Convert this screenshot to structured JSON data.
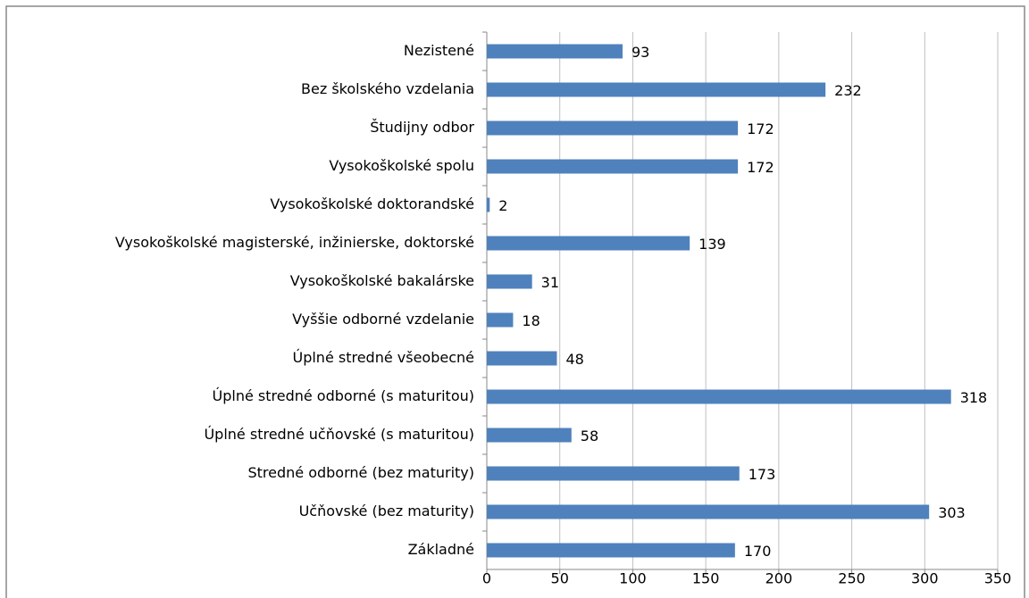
{
  "chart_data": {
    "type": "bar",
    "orientation": "horizontal",
    "categories": [
      "Nezistené",
      "Bez školského vzdelania",
      "Študijny odbor",
      "Vysokoškolské spolu",
      "Vysokoškolské doktorandské",
      "Vysokoškolské magisterské, inžinierske, doktorské",
      "Vysokoškolské bakalárske",
      "Vyššie odborné vzdelanie",
      "Úplné stredné všeobecné",
      "Úplné stredné odborné (s maturitou)",
      "Úplné stredné učňovské (s maturitou)",
      "Stredné odborné (bez maturity)",
      "Učňovské (bez maturity)",
      "Základné"
    ],
    "values": [
      93,
      232,
      172,
      172,
      2,
      139,
      31,
      18,
      48,
      318,
      58,
      173,
      303,
      170
    ],
    "color": "#4f81bd",
    "xlim": [
      0,
      350
    ],
    "xticks": [
      0,
      50,
      100,
      150,
      200,
      250,
      300,
      350
    ],
    "grid": true
  }
}
